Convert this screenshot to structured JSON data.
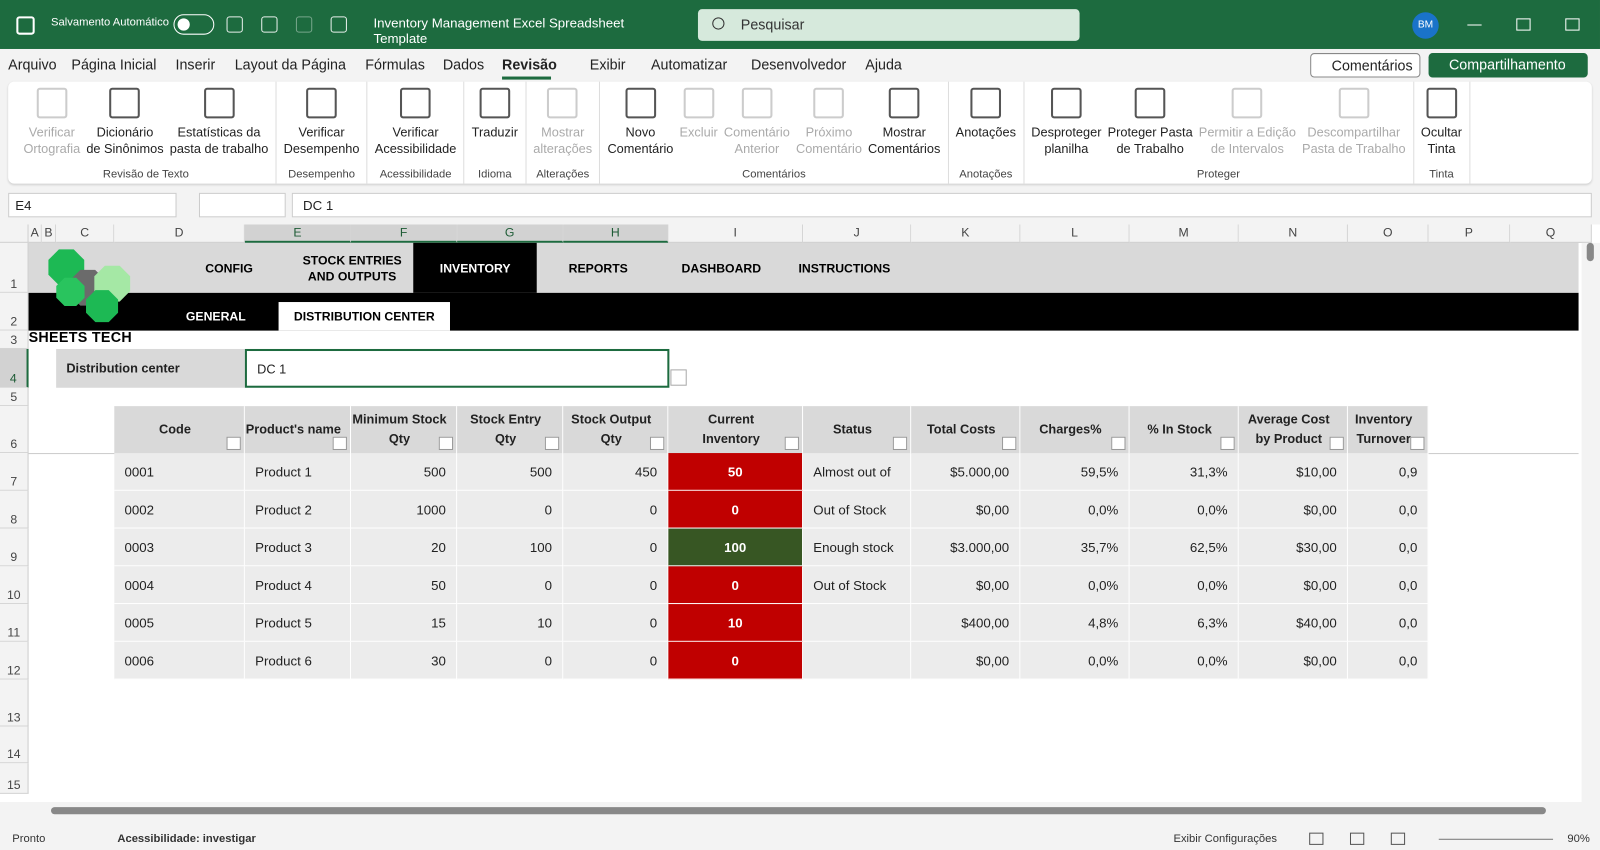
{
  "title_bar": {
    "autosave": "Salvamento Automático",
    "document_title": "Inventory Management Excel Spreadsheet Template",
    "search": "Pesquisar",
    "avatar": "BM"
  },
  "menu": {
    "tabs": [
      "Arquivo",
      "Página Inicial",
      "Inserir",
      "Layout da Página",
      "Fórmulas",
      "Dados",
      "Revisão",
      "Exibir",
      "Automatizar",
      "Desenvolvedor",
      "Ajuda"
    ],
    "comments_button": "Comentários",
    "share_button": "Compartilhamento"
  },
  "ribbon": {
    "groups": [
      {
        "name": "Revisão de Texto",
        "buttons": [
          {
            "label": "Verificar\nOrtografia",
            "enabled": false
          },
          {
            "label": "Dicionário\nde Sinônimos",
            "enabled": true
          },
          {
            "label": "Estatísticas da\npasta de trabalho",
            "enabled": true
          }
        ]
      },
      {
        "name": "Desempenho",
        "buttons": [
          {
            "label": "Verificar\nDesempenho",
            "enabled": true
          }
        ]
      },
      {
        "name": "Acessibilidade",
        "buttons": [
          {
            "label": "Verificar\nAcessibilidade",
            "enabled": true
          }
        ]
      },
      {
        "name": "Idioma",
        "buttons": [
          {
            "label": "Traduzir",
            "enabled": true
          }
        ]
      },
      {
        "name": "Alterações",
        "buttons": [
          {
            "label": "Mostrar\nalterações",
            "enabled": false
          }
        ]
      },
      {
        "name": "Comentários",
        "buttons": [
          {
            "label": "Novo\nComentário",
            "enabled": true
          },
          {
            "label": "Excluir",
            "enabled": false
          },
          {
            "label": "Comentário\nAnterior",
            "enabled": false
          },
          {
            "label": "Próximo\nComentário",
            "enabled": false
          },
          {
            "label": "Mostrar\nComentários",
            "enabled": true
          }
        ]
      },
      {
        "name": "Anotações",
        "buttons": [
          {
            "label": "Anotações",
            "enabled": true
          }
        ]
      },
      {
        "name": "Proteger",
        "buttons": [
          {
            "label": "Desproteger\nplanilha",
            "enabled": true
          },
          {
            "label": "Proteger Pasta\nde Trabalho",
            "enabled": true
          },
          {
            "label": "Permitir a Edição\nde Intervalos",
            "enabled": false
          },
          {
            "label": "Descompartilhar\nPasta de Trabalho",
            "enabled": false
          }
        ]
      },
      {
        "name": "Tinta",
        "buttons": [
          {
            "label": "Ocultar\nTinta",
            "enabled": true
          }
        ]
      }
    ]
  },
  "formula_bar": {
    "name_box": "E4",
    "formula": "DC 1"
  },
  "grid": {
    "columns": [
      "A",
      "B",
      "C",
      "D",
      "E",
      "F",
      "G",
      "H",
      "I",
      "J",
      "K",
      "L",
      "M",
      "N",
      "O",
      "P",
      "Q"
    ],
    "rows": [
      "1",
      "2",
      "3",
      "4",
      "5",
      "6",
      "7",
      "8",
      "9",
      "10",
      "11",
      "12",
      "13",
      "14",
      "15"
    ]
  },
  "sheet": {
    "logo": "SHEETS TECH",
    "nav": [
      "CONFIG",
      "STOCK ENTRIES\nAND OUTPUTS",
      "INVENTORY",
      "REPORTS",
      "DASHBOARD",
      "INSTRUCTIONS"
    ],
    "subnav": [
      "GENERAL",
      "DISTRIBUTION CENTER"
    ],
    "filter_label": "Distribution center",
    "filter_value": "DC 1"
  },
  "table": {
    "headers": [
      "Code",
      "Product's name",
      "Minimum Stock\nQty",
      "Stock Entry\nQty",
      "Stock Output\nQty",
      "Current\nInventory",
      "Status",
      "Total Costs",
      "Charges%",
      "% In Stock",
      "Average Cost\nby Product",
      "Inventory\nTurnover"
    ],
    "rows": [
      [
        "0001",
        "Product 1",
        "500",
        "500",
        "450",
        "50",
        "Almost out of stock",
        "$5.000,00",
        "59,5%",
        "31,3%",
        "$10,00",
        "0,9"
      ],
      [
        "0002",
        "Product 2",
        "1000",
        "0",
        "0",
        "0",
        "Out of Stock",
        "$0,00",
        "0,0%",
        "0,0%",
        "$0,00",
        "0,0"
      ],
      [
        "0003",
        "Product 3",
        "20",
        "100",
        "0",
        "100",
        "Enough stock",
        "$3.000,00",
        "35,7%",
        "62,5%",
        "$30,00",
        "0,0"
      ],
      [
        "0004",
        "Product 4",
        "50",
        "0",
        "0",
        "0",
        "Out of Stock",
        "$0,00",
        "0,0%",
        "0,0%",
        "$0,00",
        "0,0"
      ],
      [
        "0005",
        "Product 5",
        "15",
        "10",
        "0",
        "10",
        null,
        "$400,00",
        "4,8%",
        "6,3%",
        "$40,00",
        "0,0"
      ],
      [
        "0006",
        "Product 6",
        "30",
        "0",
        "0",
        "0",
        null,
        "$0,00",
        "0,0%",
        "0,0%",
        "$0,00",
        "0,0"
      ]
    ],
    "inventory_colors": [
      "#c00000",
      "#c00000",
      "#375623",
      "#c00000",
      "#c00000",
      "#c00000"
    ]
  },
  "status_bar": {
    "ready": "Pronto",
    "accessibility": "Acessibilidade: investigar",
    "display_settings": "Exibir Configurações",
    "zoom": "90%"
  }
}
